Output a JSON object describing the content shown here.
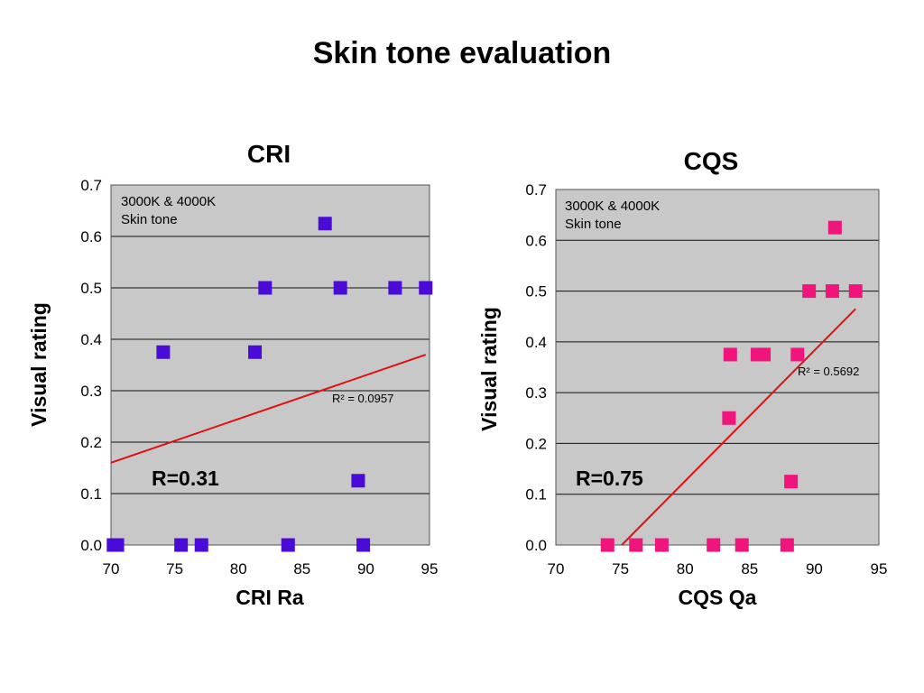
{
  "slide": {
    "title": "Skin tone evaluation"
  },
  "chart_data": [
    {
      "type": "scatter",
      "title": "CRI",
      "xlabel": "CRI Ra",
      "ylabel": "Visual rating",
      "xlim": [
        70,
        95
      ],
      "ylim": [
        0,
        0.7
      ],
      "x_ticks": [
        "70",
        "75",
        "80",
        "85",
        "90",
        "95"
      ],
      "y_ticks": [
        "0.0",
        "0.1",
        "0.2",
        "0.3",
        "0.4",
        "0.5",
        "0.6",
        "0.7"
      ],
      "grid": "horizontal",
      "note_lines": [
        "3000K & 4000K",
        "Skin tone"
      ],
      "r_label": "R=0.31",
      "r_squared_label": "R² = 0.0957",
      "marker_color": "#4a0ad8",
      "trend_color": "#e01010",
      "plot_bg": "#c8c8c8",
      "points": [
        {
          "x": 70.2,
          "y": 0.0
        },
        {
          "x": 70.5,
          "y": 0.0
        },
        {
          "x": 75.5,
          "y": 0.0
        },
        {
          "x": 77.1,
          "y": 0.0
        },
        {
          "x": 83.9,
          "y": 0.0
        },
        {
          "x": 89.8,
          "y": 0.0
        },
        {
          "x": 74.1,
          "y": 0.375
        },
        {
          "x": 81.3,
          "y": 0.375
        },
        {
          "x": 89.4,
          "y": 0.125
        },
        {
          "x": 82.1,
          "y": 0.5
        },
        {
          "x": 88.0,
          "y": 0.5
        },
        {
          "x": 92.3,
          "y": 0.5
        },
        {
          "x": 94.7,
          "y": 0.5
        },
        {
          "x": 86.8,
          "y": 0.625
        }
      ],
      "trendline": {
        "x": [
          70,
          94.7
        ],
        "y": [
          0.16,
          0.37
        ]
      }
    },
    {
      "type": "scatter",
      "title": "CQS",
      "xlabel": "CQS Qa",
      "ylabel": "Visual rating",
      "xlim": [
        70,
        95
      ],
      "ylim": [
        0,
        0.7
      ],
      "x_ticks": [
        "70",
        "75",
        "80",
        "85",
        "90",
        "95"
      ],
      "y_ticks": [
        "0.0",
        "0.1",
        "0.2",
        "0.3",
        "0.4",
        "0.5",
        "0.6",
        "0.7"
      ],
      "grid": "horizontal",
      "note_lines": [
        "3000K & 4000K",
        "Skin tone"
      ],
      "r_label": "R=0.75",
      "r_squared_label": "R² = 0.5692",
      "marker_color": "#f0147c",
      "trend_color": "#e01010",
      "plot_bg": "#c8c8c8",
      "points": [
        {
          "x": 74.0,
          "y": 0.0
        },
        {
          "x": 76.2,
          "y": 0.0
        },
        {
          "x": 78.2,
          "y": 0.0
        },
        {
          "x": 82.2,
          "y": 0.0
        },
        {
          "x": 84.4,
          "y": 0.0
        },
        {
          "x": 87.9,
          "y": 0.0
        },
        {
          "x": 88.2,
          "y": 0.125
        },
        {
          "x": 83.4,
          "y": 0.25
        },
        {
          "x": 83.5,
          "y": 0.375
        },
        {
          "x": 85.6,
          "y": 0.375
        },
        {
          "x": 86.1,
          "y": 0.375
        },
        {
          "x": 88.7,
          "y": 0.375
        },
        {
          "x": 89.6,
          "y": 0.5
        },
        {
          "x": 91.4,
          "y": 0.5
        },
        {
          "x": 93.2,
          "y": 0.5
        },
        {
          "x": 91.6,
          "y": 0.625
        }
      ],
      "trendline": {
        "x": [
          75.1,
          93.2
        ],
        "y": [
          0.0,
          0.465
        ]
      }
    }
  ]
}
